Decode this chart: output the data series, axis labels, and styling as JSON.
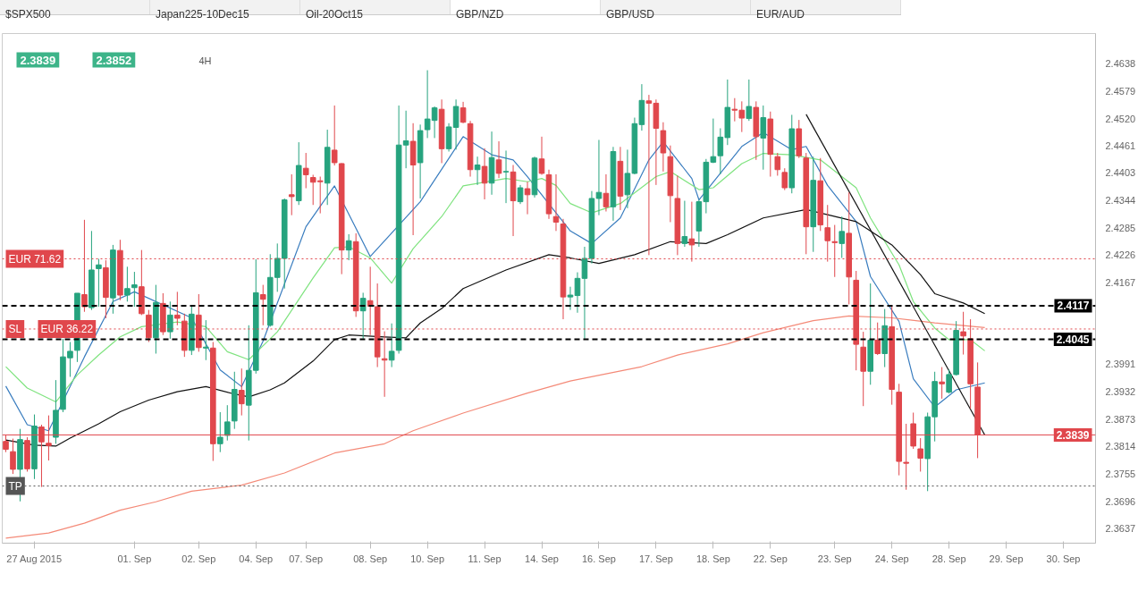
{
  "chart_data": {
    "type": "candlestick",
    "title": "GBP/NZD",
    "annotations": [
      "$SPX500",
      "Japan225-10Dec15",
      "Oil-20Oct15",
      "GBP/USD",
      "EUR/AUD",
      "2.3839",
      "2.3852",
      "4H",
      {
        "text": "EUR 36.22",
        "y": 2.4067
      }
    ],
    "categories": [
      null,
      null,
      null,
      null,
      "27 Aug 2015",
      null,
      null,
      null,
      null,
      null,
      null,
      null,
      null,
      null,
      null,
      null,
      null,
      null,
      "01. Sep",
      null,
      null,
      null,
      null,
      null,
      null,
      null,
      null,
      "02. Sep",
      null,
      null,
      null,
      null,
      null,
      null,
      null,
      "04. Sep",
      null,
      null,
      null,
      null,
      null,
      null,
      "07. Sep",
      null,
      null,
      null,
      null,
      null,
      null,
      null,
      null,
      "08. Sep",
      null,
      null,
      null,
      null,
      null,
      null,
      null,
      "10. Sep",
      null,
      null,
      null,
      null,
      null,
      null,
      null,
      "11. Sep",
      null,
      null,
      null,
      null,
      null,
      null,
      null,
      "14. Sep",
      null,
      null,
      null,
      null,
      null,
      null,
      null,
      "16. Sep",
      null,
      null,
      null,
      null,
      null,
      null,
      null,
      "17. Sep",
      null,
      null,
      null,
      null,
      null,
      null,
      null,
      "18. Sep",
      null,
      null,
      null,
      null,
      null,
      null,
      null,
      "22. Sep",
      null,
      null,
      null,
      null,
      null,
      null,
      null,
      null,
      "23. Sep",
      null,
      null,
      null,
      null,
      null,
      null,
      null,
      "24. Sep",
      null,
      null,
      null,
      null,
      null,
      null,
      null,
      "28. Sep",
      null,
      null,
      null,
      null,
      null,
      null,
      null,
      "29. Sep",
      null,
      null,
      null,
      null,
      null,
      null,
      null,
      "30. Sep",
      null,
      null,
      null,
      null
    ],
    "ohlc": [
      [
        2.3825,
        2.3838,
        2.3802,
        2.3808
      ],
      [
        2.3803,
        2.3831,
        2.3755,
        2.3765
      ],
      [
        2.3765,
        2.3852,
        2.3696,
        2.3829
      ],
      [
        2.3827,
        2.3834,
        2.376,
        2.3766
      ],
      [
        2.3766,
        2.3883,
        2.3744,
        2.3858
      ],
      [
        2.3856,
        2.3861,
        2.3727,
        2.3824
      ],
      [
        2.3821,
        2.3881,
        2.3784,
        2.3816
      ],
      [
        2.3834,
        2.3957,
        2.382,
        2.3892
      ],
      [
        2.3894,
        2.4046,
        2.3888,
        2.4007
      ],
      [
        2.4005,
        2.4039,
        2.3964,
        2.4019
      ],
      [
        2.4021,
        2.4144,
        2.3996,
        2.4144
      ],
      [
        2.4141,
        2.4302,
        2.4104,
        2.4115
      ],
      [
        2.4113,
        2.4278,
        2.4108,
        2.4194
      ],
      [
        2.4197,
        2.4218,
        2.4115,
        2.4205
      ],
      [
        2.4199,
        2.4215,
        2.409,
        2.4135
      ],
      [
        2.4134,
        2.4248,
        2.41,
        2.4237
      ],
      [
        2.4236,
        2.4259,
        2.4129,
        2.414
      ],
      [
        2.414,
        2.4201,
        2.4126,
        2.4154
      ],
      [
        2.4156,
        2.419,
        2.4115,
        2.4162
      ],
      [
        2.4158,
        2.4237,
        2.4097,
        2.41
      ],
      [
        2.4097,
        2.4108,
        2.4039,
        2.4048
      ],
      [
        2.4048,
        2.4162,
        2.4014,
        2.4124
      ],
      [
        2.4122,
        2.4144,
        2.4054,
        2.4061
      ],
      [
        2.4061,
        2.4126,
        2.4046,
        2.4097
      ],
      [
        2.4097,
        2.4147,
        2.4075,
        2.409
      ],
      [
        2.4084,
        2.41,
        2.4007,
        2.4021
      ],
      [
        2.4021,
        2.4118,
        2.4011,
        2.4099
      ],
      [
        2.4097,
        2.4142,
        2.4018,
        2.4027
      ],
      [
        2.4026,
        2.4086,
        2.4,
        2.4028
      ],
      [
        2.4026,
        2.4039,
        2.3783,
        2.382
      ],
      [
        2.382,
        2.3888,
        2.3802,
        2.3834
      ],
      [
        2.3838,
        2.3903,
        2.3827,
        2.3867
      ],
      [
        2.3869,
        2.3975,
        2.3852,
        2.3937
      ],
      [
        2.3935,
        2.3982,
        2.3881,
        2.3906
      ],
      [
        2.3903,
        2.4075,
        2.3827,
        2.3978
      ],
      [
        2.3978,
        2.4217,
        2.3971,
        2.4145
      ],
      [
        2.4141,
        2.4162,
        2.4075,
        2.4131
      ],
      [
        2.4075,
        2.4228,
        2.4072,
        2.4178
      ],
      [
        2.4178,
        2.4251,
        2.4147,
        2.4219
      ],
      [
        2.4219,
        2.4348,
        2.4154,
        2.4345
      ],
      [
        2.4356,
        2.44,
        2.4312,
        2.4352
      ],
      [
        2.4343,
        2.4469,
        2.4334,
        2.4419
      ],
      [
        2.4413,
        2.4446,
        2.437,
        2.4399
      ],
      [
        2.4393,
        2.4399,
        2.4334,
        2.4383
      ],
      [
        2.4386,
        2.4395,
        2.4316,
        2.4384
      ],
      [
        2.4381,
        2.4496,
        2.4334,
        2.4458
      ],
      [
        2.4452,
        2.4548,
        2.4419,
        2.4425
      ],
      [
        2.4423,
        2.4424,
        2.4185,
        2.4237
      ],
      [
        2.4237,
        2.4271,
        2.4215,
        2.4257
      ],
      [
        2.4255,
        2.4273,
        2.4093,
        2.4106
      ],
      [
        2.4106,
        2.4145,
        2.4046,
        2.4133
      ],
      [
        2.4128,
        2.4201,
        2.4054,
        2.4116
      ],
      [
        2.4115,
        2.4165,
        2.3985,
        2.4007
      ],
      [
        2.4003,
        2.4062,
        2.3921,
        2.4
      ],
      [
        2.4,
        2.4079,
        2.3985,
        2.4019
      ],
      [
        2.4021,
        2.4548,
        2.4014,
        2.4463
      ],
      [
        2.4463,
        2.4537,
        2.4413,
        2.4472
      ],
      [
        2.4471,
        2.451,
        2.4269,
        2.442
      ],
      [
        2.4425,
        2.4507,
        2.4348,
        2.4494
      ],
      [
        2.4496,
        2.4624,
        2.4478,
        2.4519
      ],
      [
        2.4516,
        2.4546,
        2.4478,
        2.4543
      ],
      [
        2.454,
        2.4561,
        2.4424,
        2.4455
      ],
      [
        2.4455,
        2.451,
        2.4449,
        2.4502
      ],
      [
        2.4501,
        2.4561,
        2.4453,
        2.4546
      ],
      [
        2.4543,
        2.4556,
        2.451,
        2.4512
      ],
      [
        2.4509,
        2.4515,
        2.4395,
        2.441
      ],
      [
        2.441,
        2.4438,
        2.4377,
        2.442
      ],
      [
        2.4417,
        2.4456,
        2.4346,
        2.4381
      ],
      [
        2.4381,
        2.4492,
        2.4356,
        2.4436
      ],
      [
        2.4431,
        2.4471,
        2.4392,
        2.4402
      ],
      [
        2.4405,
        2.4451,
        2.4338,
        2.4406
      ],
      [
        2.4405,
        2.442,
        2.4267,
        2.4343
      ],
      [
        2.4341,
        2.4377,
        2.4336,
        2.4371
      ],
      [
        2.4369,
        2.4384,
        2.4314,
        2.4356
      ],
      [
        2.4356,
        2.4438,
        2.435,
        2.4435
      ],
      [
        2.4433,
        2.4481,
        2.4399,
        2.4402
      ],
      [
        2.4399,
        2.441,
        2.4304,
        2.4315
      ],
      [
        2.4309,
        2.44,
        2.4278,
        2.4297
      ],
      [
        2.4293,
        2.4304,
        2.4088,
        2.4136
      ],
      [
        2.4136,
        2.4158,
        2.4108,
        2.414
      ],
      [
        2.4139,
        2.4189,
        2.4102,
        2.4176
      ],
      [
        2.4176,
        2.4244,
        2.4046,
        2.4219
      ],
      [
        2.4219,
        2.4364,
        2.4208,
        2.4348
      ],
      [
        2.4348,
        2.4474,
        2.4312,
        2.4361
      ],
      [
        2.4359,
        2.44,
        2.432,
        2.433
      ],
      [
        2.433,
        2.4459,
        2.43,
        2.4449
      ],
      [
        2.4428,
        2.4459,
        2.4323,
        2.4353
      ],
      [
        2.4356,
        2.4453,
        2.4327,
        2.4402
      ],
      [
        2.4402,
        2.4522,
        2.44,
        2.4509
      ],
      [
        2.4507,
        2.4594,
        2.4494,
        2.4559
      ],
      [
        2.4558,
        2.4571,
        2.4226,
        2.4553
      ],
      [
        2.4553,
        2.4561,
        2.4377,
        2.4499
      ],
      [
        2.4494,
        2.4512,
        2.4406,
        2.4446
      ],
      [
        2.4438,
        2.4462,
        2.4297,
        2.4354
      ],
      [
        2.4348,
        2.4397,
        2.4226,
        2.4251
      ],
      [
        2.4251,
        2.4343,
        2.4244,
        2.4266
      ],
      [
        2.4261,
        2.4341,
        2.4212,
        2.4248
      ],
      [
        2.4278,
        2.4345,
        2.4244,
        2.4341
      ],
      [
        2.4341,
        2.4433,
        2.4316,
        2.4426
      ],
      [
        2.4426,
        2.452,
        2.4424,
        2.4438
      ],
      [
        2.444,
        2.4499,
        2.44,
        2.448
      ],
      [
        2.4479,
        2.4604,
        2.4463,
        2.4544
      ],
      [
        2.454,
        2.4564,
        2.4514,
        2.4538
      ],
      [
        2.4538,
        2.4557,
        2.4491,
        2.4521
      ],
      [
        2.452,
        2.4604,
        2.4515,
        2.4546
      ],
      [
        2.4544,
        2.4557,
        2.4431,
        2.4481
      ],
      [
        2.4478,
        2.4548,
        2.441,
        2.4522
      ],
      [
        2.4519,
        2.4535,
        2.4395,
        2.4443
      ],
      [
        2.4438,
        2.4446,
        2.4397,
        2.441
      ],
      [
        2.4404,
        2.4413,
        2.4366,
        2.4371
      ],
      [
        2.4371,
        2.4528,
        2.4359,
        2.4498
      ],
      [
        2.4498,
        2.4517,
        2.4435,
        2.444
      ],
      [
        2.4435,
        2.4446,
        2.4228,
        2.4287
      ],
      [
        2.4287,
        2.4438,
        2.4233,
        2.4387
      ],
      [
        2.4386,
        2.4435,
        2.4278,
        2.4291
      ],
      [
        2.4285,
        2.4334,
        2.4212,
        2.4257
      ],
      [
        2.4255,
        2.4291,
        2.4179,
        2.4253
      ],
      [
        2.4251,
        2.4309,
        2.422,
        2.4277
      ],
      [
        2.4273,
        2.4361,
        2.412,
        2.4179
      ],
      [
        2.4172,
        2.4192,
        2.3978,
        2.4034
      ],
      [
        2.4028,
        2.4061,
        2.3901,
        2.3976
      ],
      [
        2.3976,
        2.4165,
        2.3947,
        2.4043
      ],
      [
        2.4043,
        2.4081,
        2.4011,
        2.4014
      ],
      [
        2.4014,
        2.411,
        2.3985,
        2.4074
      ],
      [
        2.4072,
        2.4118,
        2.3904,
        2.3937
      ],
      [
        2.3931,
        2.3949,
        2.3752,
        2.3782
      ],
      [
        2.378,
        2.3863,
        2.3721,
        2.3778
      ],
      [
        2.3863,
        2.3887,
        2.3809,
        2.3815
      ],
      [
        2.3809,
        2.3832,
        2.376,
        2.3789
      ],
      [
        2.3788,
        2.3887,
        2.3718,
        2.3878
      ],
      [
        2.3878,
        2.3975,
        2.3825,
        2.3954
      ],
      [
        2.3953,
        2.3985,
        2.3917,
        2.3949
      ],
      [
        2.3931,
        2.398,
        2.3928,
        2.3969
      ],
      [
        2.3969,
        2.4084,
        2.3967,
        2.4064
      ],
      [
        2.4061,
        2.4104,
        2.4012,
        2.4052
      ],
      [
        2.4046,
        2.4088,
        2.3895,
        2.3949
      ],
      [
        2.3942,
        2.3995,
        2.3789,
        2.3839
      ],
      null,
      null,
      null,
      null,
      null,
      null,
      null,
      null,
      null,
      null,
      null,
      null,
      null,
      null,
      null,
      null
    ],
    "colors": [
      "#e0474c",
      "#e0474c",
      "#26a37e",
      "#e0474c",
      "#26a37e",
      "#e0474c",
      "#e0474c",
      "#26a37e",
      "#26a37e",
      "#26a37e",
      "#26a37e",
      "#e0474c",
      "#26a37e",
      "#26a37e",
      "#e0474c",
      "#26a37e",
      "#e0474c",
      "#26a37e",
      "#26a37e",
      "#e0474c",
      "#e0474c",
      "#26a37e",
      "#e0474c",
      "#26a37e",
      "#e0474c",
      "#e0474c",
      "#26a37e",
      "#e0474c",
      "#26a37e",
      "#e0474c",
      "#26a37e",
      "#26a37e",
      "#26a37e",
      "#e0474c",
      "#26a37e",
      "#26a37e",
      "#e0474c",
      "#26a37e",
      "#26a37e",
      "#26a37e",
      "#e0474c",
      "#26a37e",
      "#e0474c",
      "#e0474c",
      "#e0474c",
      "#26a37e",
      "#e0474c",
      "#e0474c",
      "#26a37e",
      "#e0474c",
      "#26a37e",
      "#e0474c",
      "#e0474c",
      "#e0474c",
      "#26a37e",
      "#26a37e",
      "#26a37e",
      "#e0474c",
      "#26a37e",
      "#26a37e",
      "#26a37e",
      "#e0474c",
      "#26a37e",
      "#26a37e",
      "#e0474c",
      "#e0474c",
      "#26a37e",
      "#e0474c",
      "#26a37e",
      "#e0474c",
      "#26a37e",
      "#e0474c",
      "#26a37e",
      "#e0474c",
      "#26a37e",
      "#e0474c",
      "#e0474c",
      "#e0474c",
      "#e0474c",
      "#26a37e",
      "#26a37e",
      "#26a37e",
      "#26a37e",
      "#26a37e",
      "#e0474c",
      "#26a37e",
      "#e0474c",
      "#26a37e",
      "#26a37e",
      "#26a37e",
      "#e0474c",
      "#e0474c",
      "#e0474c",
      "#e0474c",
      "#e0474c",
      "#26a37e",
      "#e0474c",
      "#26a37e",
      "#26a37e",
      "#26a37e",
      "#26a37e",
      "#26a37e",
      "#e0474c",
      "#e0474c",
      "#26a37e",
      "#e0474c",
      "#26a37e",
      "#e0474c",
      "#e0474c",
      "#e0474c",
      "#26a37e",
      "#e0474c",
      "#e0474c",
      "#26a37e",
      "#e0474c",
      "#e0474c",
      "#e0474c",
      "#26a37e",
      "#e0474c",
      "#e0474c",
      "#e0474c",
      "#26a37e",
      "#e0474c",
      "#26a37e",
      "#e0474c",
      "#e0474c",
      "#e0474c",
      "#e0474c",
      "#e0474c",
      "#26a37e",
      "#26a37e",
      "#e0474c",
      "#26a37e",
      "#26a37e",
      "#e0474c",
      "#e0474c",
      "#e0474c",
      null,
      null,
      null,
      null,
      null,
      null,
      null,
      null,
      null,
      null,
      null,
      null,
      null,
      null,
      null,
      null
    ],
    "series": [
      {
        "type": "line",
        "color": "#3a7dbf",
        "values": [
          2.3944,
          null,
          null,
          2.3861,
          null,
          null,
          2.3848,
          null,
          null,
          null,
          null,
          2.4007,
          null,
          null,
          null,
          2.4126,
          null,
          null,
          2.4147,
          null,
          null,
          null,
          null,
          null,
          null,
          null,
          2.4091,
          null,
          null,
          null,
          2.3979,
          null,
          null,
          2.3943,
          null,
          null,
          2.4041,
          null,
          null,
          null,
          null,
          null,
          2.4287,
          null,
          null,
          null,
          2.4375,
          null,
          null,
          null,
          null,
          2.4223,
          null,
          null,
          null,
          null,
          null,
          null,
          2.4341,
          null,
          null,
          null,
          null,
          null,
          2.4481,
          null,
          null,
          null,
          2.4442,
          null,
          null,
          2.4431,
          null,
          2.4395,
          null,
          null,
          null,
          null,
          null,
          2.4278,
          null,
          null,
          2.4251,
          null,
          null,
          null,
          2.4306,
          null,
          null,
          null,
          2.4431,
          null,
          2.447,
          null,
          null,
          null,
          2.4391,
          2.4345,
          null,
          null,
          null,
          null,
          null,
          2.446,
          null,
          null,
          2.449,
          null,
          null,
          null,
          2.4453,
          null,
          2.446,
          null,
          null,
          2.4376,
          null,
          null,
          null,
          2.4298,
          null,
          2.418,
          null,
          null,
          null,
          2.4083,
          null,
          2.396,
          null,
          null,
          2.3899,
          null,
          null,
          2.3936,
          null,
          null,
          null,
          2.3951,
          null,
          null,
          null,
          null,
          null,
          null,
          null,
          null,
          null,
          null,
          null,
          null,
          null,
          null,
          null
        ]
      },
      {
        "type": "line",
        "color": "#7fe37f",
        "values": [
          2.3986,
          null,
          null,
          2.394,
          null,
          null,
          null,
          2.391,
          null,
          null,
          2.3968,
          null,
          null,
          2.4011,
          null,
          null,
          2.405,
          null,
          null,
          2.4072,
          null,
          null,
          null,
          null,
          2.4082,
          null,
          null,
          null,
          2.4072,
          null,
          null,
          2.4018,
          null,
          null,
          2.4001,
          null,
          null,
          null,
          2.4061,
          null,
          null,
          null,
          null,
          2.4177,
          null,
          null,
          2.4242,
          null,
          2.4244,
          null,
          null,
          2.422,
          null,
          null,
          2.4166,
          null,
          null,
          2.424,
          null,
          null,
          null,
          2.4309,
          null,
          null,
          2.4375,
          null,
          null,
          null,
          null,
          null,
          2.4391,
          null,
          null,
          2.4384,
          null,
          2.4391,
          null,
          2.4376,
          null,
          2.4337,
          null,
          null,
          2.4317,
          null,
          null,
          null,
          2.4337,
          null,
          null,
          null,
          null,
          2.4395,
          null,
          2.4406,
          null,
          null,
          null,
          2.4367,
          null,
          2.4371,
          null,
          null,
          null,
          2.4423,
          null,
          null,
          2.4445,
          null,
          null,
          null,
          2.4442,
          null,
          null,
          null,
          2.4431,
          null,
          null,
          null,
          null,
          2.4371,
          null,
          2.4306,
          null,
          null,
          null,
          2.4205,
          null,
          2.4126,
          null,
          null,
          2.4069,
          null,
          2.4044,
          null,
          null,
          2.4044,
          null,
          2.402,
          null,
          null,
          null,
          null,
          null,
          null,
          null,
          null,
          null,
          null,
          null,
          null,
          null,
          null,
          null
        ]
      },
      {
        "type": "line",
        "color": "#111111",
        "values": [
          2.3828,
          null,
          null,
          null,
          2.3817,
          null,
          null,
          2.3815,
          null,
          2.3832,
          null,
          null,
          null,
          2.3863,
          null,
          null,
          2.3889,
          null,
          null,
          null,
          2.3914,
          null,
          null,
          null,
          2.3932,
          null,
          null,
          null,
          2.3943,
          null,
          null,
          null,
          2.3927,
          null,
          2.3921,
          null,
          null,
          2.3936,
          null,
          2.3951,
          null,
          null,
          null,
          2.3998,
          null,
          null,
          2.4044,
          null,
          2.4054,
          null,
          null,
          null,
          null,
          2.405,
          null,
          null,
          2.4048,
          null,
          2.408,
          null,
          null,
          2.4111,
          null,
          null,
          2.4154,
          null,
          null,
          null,
          null,
          null,
          2.4194,
          null,
          null,
          null,
          null,
          null,
          2.4227,
          null,
          null,
          2.422,
          null,
          null,
          null,
          2.4208,
          null,
          null,
          null,
          null,
          2.4227,
          null,
          null,
          null,
          null,
          2.4255,
          null,
          null,
          null,
          null,
          2.4251,
          null,
          null,
          2.427,
          null,
          null,
          null,
          null,
          2.4306,
          null,
          null,
          null,
          null,
          null,
          2.4324,
          null,
          null,
          2.4313,
          null,
          null,
          null,
          2.4298,
          null,
          null,
          null,
          null,
          2.4248,
          null,
          null,
          null,
          2.4184,
          null,
          2.4143,
          null,
          null,
          null,
          2.4123,
          null,
          null,
          2.41,
          null,
          null,
          null,
          null,
          null,
          null,
          null,
          null,
          null,
          null,
          null,
          null,
          null,
          null,
          null
        ]
      },
      {
        "type": "line",
        "color": "#f48a78",
        "values": [
          2.3617,
          null,
          null,
          null,
          null,
          null,
          2.3628,
          null,
          null,
          null,
          null,
          2.3649,
          null,
          null,
          null,
          null,
          2.3677,
          null,
          null,
          null,
          null,
          2.3695,
          null,
          null,
          null,
          null,
          2.3718,
          null,
          null,
          null,
          null,
          null,
          null,
          2.3731,
          null,
          null,
          null,
          null,
          null,
          2.3757,
          null,
          null,
          null,
          null,
          null,
          null,
          2.38,
          null,
          null,
          null,
          null,
          null,
          null,
          2.382,
          null,
          null,
          null,
          2.3848,
          null,
          null,
          null,
          null,
          null,
          null,
          2.3886,
          null,
          null,
          null,
          null,
          null,
          null,
          null,
          null,
          2.3929,
          null,
          null,
          null,
          null,
          null,
          2.3955,
          null,
          null,
          null,
          null,
          null,
          null,
          null,
          null,
          null,
          2.3986,
          null,
          null,
          null,
          null,
          2.4011,
          null,
          null,
          null,
          null,
          null,
          null,
          2.4035,
          null,
          null,
          null,
          null,
          2.4059,
          null,
          null,
          null,
          null,
          null,
          null,
          2.4085,
          null,
          null,
          null,
          null,
          2.4095,
          null,
          null,
          null,
          null,
          null,
          2.4091,
          null,
          null,
          null,
          null,
          null,
          2.408,
          null,
          null,
          null,
          null,
          null,
          null,
          2.407,
          null,
          null,
          null,
          null,
          null,
          null,
          null,
          null,
          null,
          null,
          null,
          null,
          null,
          null,
          null
        ]
      },
      {
        "type": "line",
        "color": "#111111",
        "values": [
          null,
          null,
          null,
          null,
          null,
          null,
          null,
          null,
          null,
          null,
          null,
          null,
          null,
          null,
          null,
          null,
          null,
          null,
          null,
          null,
          null,
          null,
          null,
          null,
          null,
          null,
          null,
          null,
          null,
          null,
          null,
          null,
          null,
          null,
          null,
          null,
          null,
          null,
          null,
          null,
          null,
          null,
          null,
          null,
          null,
          null,
          null,
          null,
          null,
          null,
          null,
          null,
          null,
          null,
          null,
          null,
          null,
          null,
          null,
          null,
          null,
          null,
          null,
          null,
          null,
          null,
          null,
          null,
          null,
          null,
          null,
          null,
          null,
          null,
          null,
          null,
          null,
          null,
          null,
          null,
          null,
          null,
          null,
          null,
          null,
          null,
          null,
          null,
          null,
          null,
          null,
          null,
          null,
          null,
          null,
          null,
          null,
          null,
          null,
          null,
          null,
          null,
          null,
          null,
          null,
          null,
          null,
          null,
          null,
          null,
          null,
          null,
          2.4529,
          null,
          null,
          null,
          null,
          null,
          null,
          null,
          null,
          null,
          null,
          null,
          null,
          null,
          null,
          null,
          null,
          null,
          null,
          null,
          null,
          null,
          null,
          null,
          null,
          2.3839,
          null,
          null,
          null,
          null,
          null,
          null,
          null,
          null,
          null,
          null,
          null,
          null,
          null,
          null,
          null
        ]
      }
    ],
    "ref_lines": [
      {
        "axis": "y",
        "value": 2.4218,
        "label": "EUR 71.62",
        "color": "#e0474c",
        "line_style": "dotted"
      },
      {
        "axis": "y",
        "value": 2.4117,
        "label": "2.4117",
        "color": "#000000",
        "line_style": "dashed"
      },
      {
        "axis": "y",
        "value": 2.4067,
        "label": "SL",
        "color": "#e0474c",
        "line_style": "dotted"
      },
      {
        "axis": "y",
        "value": 2.4045,
        "label": "2.4045",
        "color": "#000000",
        "line_style": "dashed"
      },
      {
        "axis": "y",
        "value": 2.3839,
        "label": "2.3839",
        "color": "#e0474c",
        "line_style": "solid"
      },
      {
        "axis": "y",
        "value": 2.3729,
        "label": "TP",
        "color": "#555555",
        "line_style": "dotted"
      }
    ],
    "ylim": [
      2.3606,
      2.4703
    ],
    "yticks": [
      2.3637,
      2.3696,
      2.3755,
      2.3814,
      2.3873,
      2.3932,
      2.3991,
      2.4167,
      2.4226,
      2.4285,
      2.4344,
      2.4403,
      2.4461,
      {
        "value": 2.452,
        "label": "2.4520"
      },
      2.4579,
      2.4638
    ]
  }
}
